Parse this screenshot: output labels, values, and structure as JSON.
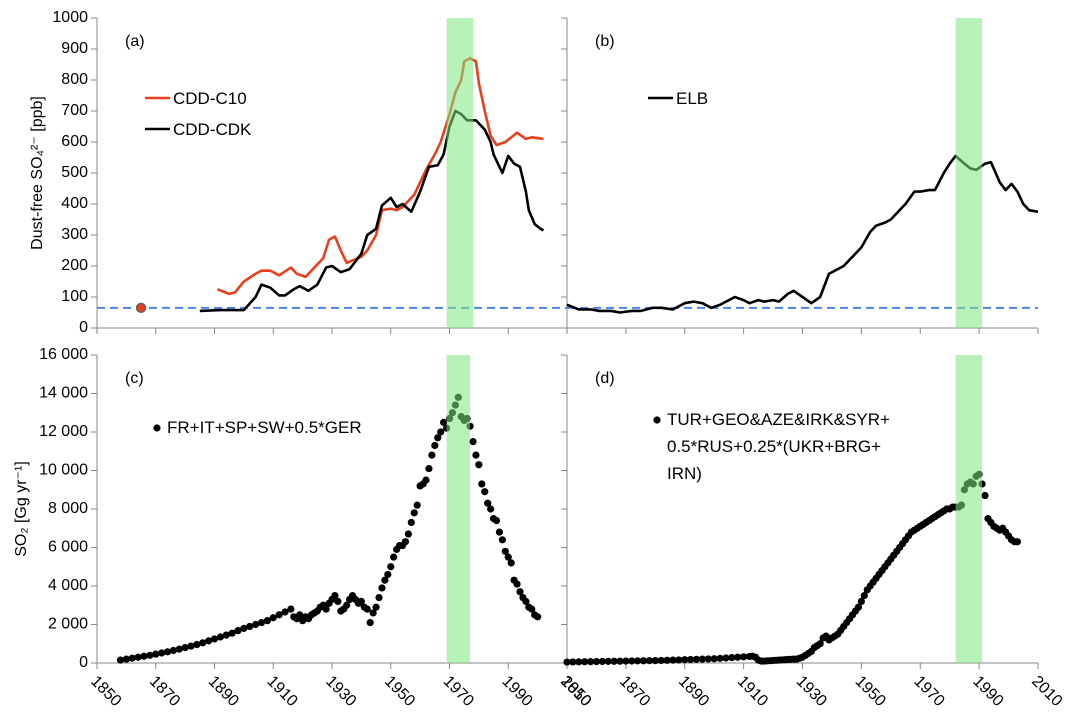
{
  "chart_data": [
    {
      "type": "line",
      "panel_label": "(a)",
      "y_label": "Dust-free SO₄²⁻ [ppb]",
      "xlim": [
        1850,
        2010
      ],
      "xticks": [
        1850,
        1870,
        1890,
        1910,
        1930,
        1950,
        1970,
        1990,
        2010
      ],
      "show_xtick_labels": false,
      "ylim": [
        0,
        1000
      ],
      "yticks": [
        0,
        100,
        200,
        300,
        400,
        500,
        600,
        700,
        800,
        900,
        1000
      ],
      "show_ytick_labels": true,
      "highlight": [
        1969,
        1978
      ],
      "highlight_color": "#7ee87e",
      "reference_line": 65,
      "reference_line_color": "#4a86e8",
      "reference_point": {
        "x": 1865,
        "y": 65,
        "color": "#e8401c"
      },
      "series": [
        {
          "name": "CDD-C10",
          "color": "#e8401c",
          "x": [
            1891,
            1895,
            1897,
            1900,
            1904,
            1906,
            1909,
            1912,
            1916,
            1918,
            1921,
            1924,
            1927,
            1929,
            1931,
            1933,
            1935,
            1940,
            1942,
            1945,
            1947,
            1950,
            1952,
            1954,
            1958,
            1962,
            1965,
            1967,
            1970,
            1972,
            1974,
            1975,
            1977,
            1979,
            1980,
            1982,
            1984,
            1986,
            1989,
            1991,
            1993,
            1996,
            1998,
            2002
          ],
          "values": [
            125,
            110,
            115,
            150,
            175,
            185,
            185,
            170,
            195,
            175,
            165,
            195,
            225,
            285,
            295,
            250,
            210,
            230,
            250,
            300,
            380,
            385,
            380,
            390,
            430,
            510,
            560,
            600,
            690,
            760,
            800,
            860,
            870,
            860,
            790,
            700,
            620,
            590,
            600,
            615,
            630,
            610,
            615,
            610
          ]
        },
        {
          "name": "CDD-CDK",
          "color": "#000000",
          "x": [
            1885,
            1892,
            1900,
            1904,
            1906,
            1909,
            1912,
            1914,
            1917,
            1919,
            1922,
            1925,
            1928,
            1930,
            1933,
            1936,
            1940,
            1942,
            1945,
            1947,
            1950,
            1952,
            1954,
            1957,
            1960,
            1963,
            1966,
            1968,
            1970,
            1972,
            1974,
            1976,
            1979,
            1982,
            1984,
            1985,
            1988,
            1990,
            1992,
            1994,
            1996,
            1997,
            1999,
            2001,
            2002
          ],
          "values": [
            55,
            58,
            58,
            100,
            140,
            130,
            105,
            105,
            125,
            135,
            120,
            140,
            195,
            200,
            180,
            190,
            240,
            300,
            320,
            395,
            420,
            390,
            400,
            375,
            440,
            520,
            525,
            560,
            650,
            700,
            690,
            670,
            670,
            640,
            600,
            560,
            500,
            555,
            530,
            520,
            440,
            380,
            335,
            320,
            315
          ]
        }
      ]
    },
    {
      "type": "line",
      "panel_label": "(b)",
      "xlim": [
        1850,
        2010
      ],
      "xticks": [
        1850,
        1870,
        1890,
        1910,
        1930,
        1950,
        1970,
        1990,
        2010
      ],
      "show_xtick_labels": false,
      "ylim": [
        0,
        1000
      ],
      "yticks": [
        0,
        100,
        200,
        300,
        400,
        500,
        600,
        700,
        800,
        900,
        1000
      ],
      "show_ytick_labels": false,
      "highlight": [
        1982,
        1991
      ],
      "highlight_color": "#7ee87e",
      "reference_line": 65,
      "reference_line_color": "#4a86e8",
      "series": [
        {
          "name": "ELB",
          "color": "#000000",
          "x": [
            1850,
            1854,
            1858,
            1861,
            1865,
            1868,
            1872,
            1875,
            1879,
            1882,
            1886,
            1890,
            1893,
            1896,
            1899,
            1902,
            1905,
            1907,
            1910,
            1912,
            1915,
            1917,
            1920,
            1922,
            1925,
            1927,
            1930,
            1933,
            1936,
            1939,
            1942,
            1944,
            1947,
            1950,
            1953,
            1955,
            1958,
            1960,
            1963,
            1965,
            1968,
            1970,
            1973,
            1975,
            1978,
            1980,
            1982,
            1985,
            1987,
            1989,
            1992,
            1994,
            1997,
            1999,
            2001,
            2003,
            2005,
            2007,
            2010
          ],
          "values": [
            75,
            60,
            60,
            55,
            55,
            50,
            55,
            55,
            65,
            65,
            60,
            80,
            85,
            80,
            65,
            75,
            90,
            100,
            90,
            80,
            90,
            85,
            90,
            85,
            110,
            120,
            100,
            80,
            100,
            175,
            190,
            200,
            230,
            260,
            310,
            330,
            340,
            350,
            380,
            400,
            440,
            440,
            445,
            445,
            500,
            530,
            555,
            530,
            515,
            510,
            530,
            535,
            470,
            445,
            465,
            440,
            400,
            380,
            375
          ]
        }
      ]
    },
    {
      "type": "scatter",
      "panel_label": "(c)",
      "y_label": "SO₂ [Gg yr⁻¹]",
      "xlim": [
        1850,
        2010
      ],
      "xticks": [
        1850,
        1870,
        1890,
        1910,
        1930,
        1950,
        1970,
        1990,
        2010
      ],
      "show_xtick_labels": true,
      "ylim": [
        0,
        16000
      ],
      "yticks": [
        0,
        {
          "value": 2000,
          "label": "2 000"
        },
        {
          "value": 4000,
          "label": "4 000"
        },
        {
          "value": 6000,
          "label": "6 000"
        },
        {
          "value": 8000,
          "label": "8 000"
        },
        {
          "value": 10000,
          "label": "10 000"
        },
        {
          "value": 12000,
          "label": "12 000"
        },
        {
          "value": 14000,
          "label": "14 000"
        },
        {
          "value": 16000,
          "label": "16 000"
        }
      ],
      "show_ytick_labels": true,
      "highlight": [
        1969,
        1977
      ],
      "highlight_color": "#7ee87e",
      "series": [
        {
          "name": "FR+IT+SP+SW+0.5*GER",
          "color": "#000000",
          "x": [
            1858,
            1860,
            1862,
            1864,
            1866,
            1868,
            1870,
            1872,
            1874,
            1876,
            1878,
            1880,
            1882,
            1884,
            1886,
            1888,
            1890,
            1892,
            1894,
            1896,
            1898,
            1900,
            1902,
            1904,
            1906,
            1908,
            1910,
            1912,
            1914,
            1916,
            1917,
            1918,
            1919,
            1920,
            1921,
            1922,
            1923,
            1924,
            1925,
            1926,
            1927,
            1928,
            1929,
            1930,
            1931,
            1932,
            1933,
            1934,
            1935,
            1936,
            1937,
            1938,
            1939,
            1940,
            1941,
            1942,
            1943,
            1944,
            1945,
            1946,
            1947,
            1948,
            1949,
            1950,
            1951,
            1952,
            1953,
            1954,
            1955,
            1956,
            1957,
            1958,
            1959,
            1960,
            1961,
            1962,
            1963,
            1964,
            1965,
            1966,
            1967,
            1968,
            1969,
            1970,
            1971,
            1972,
            1973,
            1974,
            1975,
            1976,
            1977,
            1978,
            1979,
            1980,
            1981,
            1982,
            1983,
            1984,
            1985,
            1986,
            1987,
            1988,
            1989,
            1990,
            1991,
            1992,
            1993,
            1994,
            1995,
            1996,
            1997,
            1998,
            1999,
            2000
          ],
          "values": [
            150,
            200,
            250,
            300,
            350,
            400,
            460,
            520,
            580,
            650,
            720,
            800,
            880,
            960,
            1050,
            1150,
            1250,
            1350,
            1450,
            1550,
            1680,
            1800,
            1900,
            2000,
            2100,
            2200,
            2350,
            2500,
            2650,
            2800,
            2400,
            2300,
            2500,
            2200,
            2400,
            2300,
            2500,
            2600,
            2700,
            2900,
            3000,
            2800,
            3100,
            3300,
            3500,
            3200,
            2700,
            2800,
            3000,
            3300,
            3500,
            3300,
            3100,
            3200,
            2900,
            2800,
            2100,
            2600,
            2900,
            3400,
            3900,
            4300,
            4600,
            5000,
            5500,
            5900,
            6100,
            6100,
            6300,
            6700,
            7300,
            7800,
            8200,
            9200,
            9300,
            9500,
            10100,
            10800,
            11300,
            11700,
            12000,
            12500,
            12200,
            12700,
            13000,
            13400,
            13800,
            12800,
            12600,
            12700,
            12300,
            11500,
            10800,
            10300,
            9300,
            8900,
            8300,
            8000,
            7500,
            7400,
            6800,
            6400,
            5800,
            5500,
            5200,
            4300,
            4100,
            3700,
            3400,
            3200,
            2900,
            2800,
            2500,
            2400
          ]
        }
      ]
    },
    {
      "type": "scatter",
      "panel_label": "(d)",
      "xlim": [
        1850,
        2010
      ],
      "xticks": [
        1850,
        1870,
        1890,
        1910,
        1930,
        1950,
        1970,
        1990,
        2010
      ],
      "show_xtick_labels": true,
      "ylim": [
        0,
        16000
      ],
      "yticks": [
        0,
        2000,
        4000,
        6000,
        8000,
        10000,
        12000,
        14000,
        16000
      ],
      "show_ytick_labels": false,
      "highlight": [
        1982,
        1991
      ],
      "highlight_color": "#7ee87e",
      "series": [
        {
          "name": "TUR+GEO&AZE&IRK&SYR+\n0.5*RUS+0.25*(UKR+BRG+\nIRN)",
          "color": "#000000",
          "x": [
            1850,
            1852,
            1854,
            1856,
            1858,
            1860,
            1862,
            1864,
            1866,
            1868,
            1870,
            1872,
            1874,
            1876,
            1878,
            1880,
            1882,
            1884,
            1886,
            1888,
            1890,
            1892,
            1894,
            1896,
            1898,
            1900,
            1902,
            1904,
            1906,
            1908,
            1910,
            1912,
            1913,
            1914,
            1915,
            1916,
            1917,
            1918,
            1919,
            1920,
            1921,
            1922,
            1923,
            1924,
            1925,
            1926,
            1927,
            1928,
            1929,
            1930,
            1931,
            1932,
            1933,
            1934,
            1935,
            1936,
            1937,
            1938,
            1939,
            1940,
            1941,
            1942,
            1943,
            1944,
            1945,
            1946,
            1947,
            1948,
            1949,
            1950,
            1951,
            1952,
            1953,
            1954,
            1955,
            1956,
            1957,
            1958,
            1959,
            1960,
            1961,
            1962,
            1963,
            1964,
            1965,
            1966,
            1967,
            1968,
            1969,
            1970,
            1971,
            1972,
            1973,
            1974,
            1975,
            1976,
            1977,
            1978,
            1979,
            1980,
            1981,
            1982,
            1983,
            1984,
            1985,
            1986,
            1987,
            1988,
            1989,
            1990,
            1991,
            1992,
            1993,
            1994,
            1995,
            1996,
            1997,
            1998,
            1999,
            2000,
            2001,
            2002,
            2003
          ],
          "values": [
            50,
            55,
            60,
            65,
            70,
            75,
            80,
            85,
            90,
            95,
            100,
            105,
            110,
            115,
            120,
            125,
            130,
            140,
            150,
            160,
            170,
            180,
            190,
            200,
            210,
            220,
            240,
            260,
            280,
            300,
            320,
            340,
            350,
            300,
            150,
            100,
            100,
            110,
            120,
            130,
            140,
            150,
            160,
            170,
            180,
            190,
            200,
            200,
            250,
            300,
            400,
            500,
            600,
            800,
            900,
            1000,
            1300,
            1400,
            1200,
            1300,
            1400,
            1500,
            1700,
            1900,
            2100,
            2300,
            2500,
            2700,
            2900,
            3200,
            3500,
            3800,
            4000,
            4200,
            4400,
            4600,
            4800,
            5000,
            5200,
            5400,
            5600,
            5800,
            6000,
            6200,
            6400,
            6600,
            6800,
            6900,
            7000,
            7100,
            7200,
            7300,
            7400,
            7500,
            7600,
            7700,
            7800,
            7900,
            8000,
            8000,
            8100,
            8100,
            8100,
            8200,
            9000,
            9300,
            9400,
            9300,
            9700,
            9800,
            9300,
            8700,
            7500,
            7300,
            7100,
            7000,
            6900,
            7000,
            6800,
            6600,
            6400,
            6300,
            6300
          ]
        }
      ]
    }
  ]
}
